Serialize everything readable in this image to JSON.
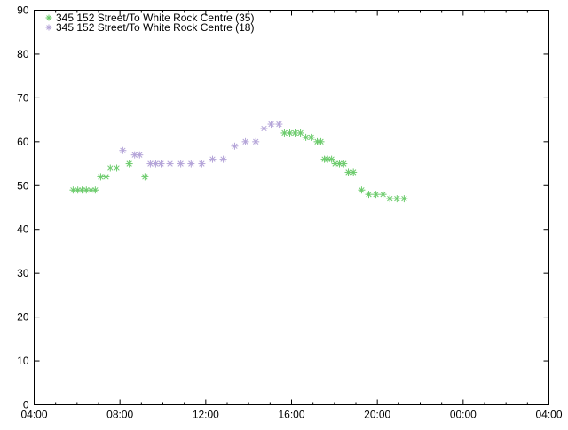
{
  "chart_data": {
    "type": "scatter",
    "title": "",
    "xlabel": "",
    "ylabel": "",
    "xlim": [
      "04:00",
      "04:00+1"
    ],
    "ylim": [
      0,
      90
    ],
    "x_ticks": [
      "04:00",
      "08:00",
      "12:00",
      "16:00",
      "20:00",
      "00:00",
      "04:00"
    ],
    "y_ticks": [
      0,
      10,
      20,
      30,
      40,
      50,
      60,
      70,
      80,
      90
    ],
    "grid": false,
    "legend_position": "top-left",
    "marker": "asterisk",
    "series": [
      {
        "name": "345 152 Street/To White Rock Centre (35)",
        "color": "#6ccb6c",
        "points": [
          [
            "05:49",
            49
          ],
          [
            "06:02",
            49
          ],
          [
            "06:14",
            49
          ],
          [
            "06:26",
            49
          ],
          [
            "06:39",
            49
          ],
          [
            "06:51",
            49
          ],
          [
            "07:06",
            52
          ],
          [
            "07:21",
            52
          ],
          [
            "07:33",
            54
          ],
          [
            "07:51",
            54
          ],
          [
            "08:26",
            55
          ],
          [
            "09:10",
            52
          ],
          [
            "15:40",
            62
          ],
          [
            "15:55",
            62
          ],
          [
            "16:10",
            62
          ],
          [
            "16:25",
            62
          ],
          [
            "16:40",
            61
          ],
          [
            "16:55",
            61
          ],
          [
            "17:12",
            60
          ],
          [
            "17:22",
            60
          ],
          [
            "17:32",
            56
          ],
          [
            "17:41",
            56
          ],
          [
            "17:52",
            56
          ],
          [
            "18:02",
            55
          ],
          [
            "18:14",
            55
          ],
          [
            "18:26",
            55
          ],
          [
            "18:39",
            53
          ],
          [
            "18:53",
            53
          ],
          [
            "19:16",
            49
          ],
          [
            "19:36",
            48
          ],
          [
            "19:56",
            48
          ],
          [
            "20:16",
            48
          ],
          [
            "20:35",
            47
          ],
          [
            "20:55",
            47
          ],
          [
            "21:15",
            47
          ]
        ]
      },
      {
        "name": "345 152 Street/To White Rock Centre (18)",
        "color": "#b4a4d8",
        "points": [
          [
            "08:08",
            58
          ],
          [
            "08:41",
            57
          ],
          [
            "08:55",
            57
          ],
          [
            "09:25",
            55
          ],
          [
            "09:40",
            55
          ],
          [
            "09:55",
            55
          ],
          [
            "10:20",
            55
          ],
          [
            "10:50",
            55
          ],
          [
            "11:19",
            55
          ],
          [
            "11:49",
            55
          ],
          [
            "12:19",
            56
          ],
          [
            "12:49",
            56
          ],
          [
            "13:21",
            59
          ],
          [
            "13:51",
            60
          ],
          [
            "14:20",
            60
          ],
          [
            "14:43",
            63
          ],
          [
            "15:03",
            64
          ],
          [
            "15:25",
            64
          ]
        ]
      }
    ]
  }
}
